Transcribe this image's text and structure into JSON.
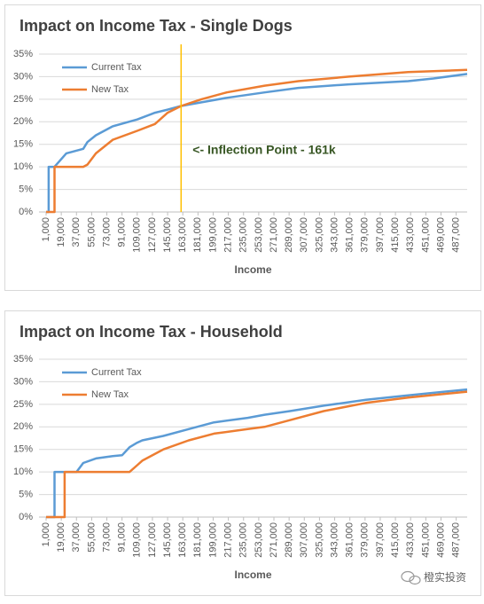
{
  "chart_data": [
    {
      "type": "line",
      "title": "Impact on Income Tax - Single Dogs",
      "xlabel": "Income",
      "x": [
        1000,
        4000,
        4000,
        11000,
        11000,
        25000,
        45000,
        50000,
        60000,
        80000,
        109000,
        130000,
        145000,
        161000,
        185000,
        215000,
        260000,
        300000,
        360000,
        430000,
        460000,
        500000
      ],
      "series": [
        {
          "name": "Current Tax",
          "color": "#5b9bd5",
          "values": [
            0,
            0,
            10,
            10,
            10,
            13,
            14,
            15.5,
            17,
            19,
            20.5,
            22,
            22.7,
            23.5,
            24.3,
            25.3,
            26.5,
            27.5,
            28.3,
            29,
            29.6,
            30.6
          ]
        },
        {
          "name": "New Tax",
          "color": "#ed7d31",
          "values": [
            0,
            0,
            0,
            0,
            10,
            10,
            10,
            10.5,
            13,
            16,
            18,
            19.5,
            22,
            23.5,
            25,
            26.5,
            28,
            29,
            30,
            31,
            31.2,
            31.5
          ]
        }
      ],
      "vline": {
        "x": 161000,
        "color": "#ffc000",
        "label": "<- Inflection Point - 161k"
      },
      "xlim": [
        1000,
        500000
      ],
      "ylim": [
        0,
        35
      ],
      "yticks": [
        {
          "value": 0,
          "label": "0%"
        },
        {
          "value": 5,
          "label": "5%"
        },
        {
          "value": 10,
          "label": "10%"
        },
        {
          "value": 15,
          "label": "15%"
        },
        {
          "value": 20,
          "label": "20%"
        },
        {
          "value": 25,
          "label": "25%"
        },
        {
          "value": 30,
          "label": "30%"
        },
        {
          "value": 35,
          "label": "35%"
        }
      ],
      "xticks": [
        {
          "value": 1000,
          "label": "1,000"
        },
        {
          "value": 19000,
          "label": "19,000"
        },
        {
          "value": 37000,
          "label": "37,000"
        },
        {
          "value": 55000,
          "label": "55,000"
        },
        {
          "value": 73000,
          "label": "73,000"
        },
        {
          "value": 91000,
          "label": "91,000"
        },
        {
          "value": 109000,
          "label": "109,000"
        },
        {
          "value": 127000,
          "label": "127,000"
        },
        {
          "value": 145000,
          "label": "145,000"
        },
        {
          "value": 163000,
          "label": "163,000"
        },
        {
          "value": 181000,
          "label": "181,000"
        },
        {
          "value": 199000,
          "label": "199,000"
        },
        {
          "value": 217000,
          "label": "217,000"
        },
        {
          "value": 235000,
          "label": "235,000"
        },
        {
          "value": 253000,
          "label": "253,000"
        },
        {
          "value": 271000,
          "label": "271,000"
        },
        {
          "value": 289000,
          "label": "289,000"
        },
        {
          "value": 307000,
          "label": "307,000"
        },
        {
          "value": 325000,
          "label": "325,000"
        },
        {
          "value": 343000,
          "label": "343,000"
        },
        {
          "value": 361000,
          "label": "361,000"
        },
        {
          "value": 379000,
          "label": "379,000"
        },
        {
          "value": 397000,
          "label": "397,000"
        },
        {
          "value": 415000,
          "label": "415,000"
        },
        {
          "value": 433000,
          "label": "433,000"
        },
        {
          "value": 451000,
          "label": "451,000"
        },
        {
          "value": 469000,
          "label": "469,000"
        },
        {
          "value": 487000,
          "label": "487,000"
        }
      ],
      "grid": true,
      "legend": "upper left"
    },
    {
      "type": "line",
      "title": "Impact on Income Tax - Household",
      "xlabel": "Income",
      "x": [
        1000,
        11000,
        11000,
        23000,
        23000,
        37000,
        45000,
        60000,
        80000,
        91000,
        100000,
        109000,
        115000,
        140000,
        170000,
        200000,
        240000,
        260000,
        290000,
        330000,
        380000,
        430000,
        500000
      ],
      "series": [
        {
          "name": "Current Tax",
          "color": "#5b9bd5",
          "values": [
            0,
            0,
            10,
            10,
            10,
            10,
            12,
            13,
            13.5,
            13.7,
            15.5,
            16.5,
            17,
            18,
            19.5,
            21,
            22,
            22.7,
            23.5,
            24.7,
            26,
            27,
            28.3
          ]
        },
        {
          "name": "New Tax",
          "color": "#ed7d31",
          "values": [
            0,
            0,
            0,
            0,
            10,
            10,
            10,
            10,
            10,
            10,
            10,
            11.5,
            12.5,
            15,
            17,
            18.5,
            19.5,
            20,
            21.5,
            23.5,
            25.3,
            26.5,
            27.8
          ]
        }
      ],
      "xlim": [
        1000,
        500000
      ],
      "ylim": [
        0,
        35
      ],
      "yticks": [
        {
          "value": 0,
          "label": "0%"
        },
        {
          "value": 5,
          "label": "5%"
        },
        {
          "value": 10,
          "label": "10%"
        },
        {
          "value": 15,
          "label": "15%"
        },
        {
          "value": 20,
          "label": "20%"
        },
        {
          "value": 25,
          "label": "25%"
        },
        {
          "value": 30,
          "label": "30%"
        },
        {
          "value": 35,
          "label": "35%"
        }
      ],
      "xticks": [
        {
          "value": 1000,
          "label": "1,000"
        },
        {
          "value": 19000,
          "label": "19,000"
        },
        {
          "value": 37000,
          "label": "37,000"
        },
        {
          "value": 55000,
          "label": "55,000"
        },
        {
          "value": 73000,
          "label": "73,000"
        },
        {
          "value": 91000,
          "label": "91,000"
        },
        {
          "value": 109000,
          "label": "109,000"
        },
        {
          "value": 127000,
          "label": "127,000"
        },
        {
          "value": 145000,
          "label": "145,000"
        },
        {
          "value": 163000,
          "label": "163,000"
        },
        {
          "value": 181000,
          "label": "181,000"
        },
        {
          "value": 199000,
          "label": "199,000"
        },
        {
          "value": 217000,
          "label": "217,000"
        },
        {
          "value": 235000,
          "label": "235,000"
        },
        {
          "value": 253000,
          "label": "253,000"
        },
        {
          "value": 271000,
          "label": "271,000"
        },
        {
          "value": 289000,
          "label": "289,000"
        },
        {
          "value": 307000,
          "label": "307,000"
        },
        {
          "value": 325000,
          "label": "325,000"
        },
        {
          "value": 343000,
          "label": "343,000"
        },
        {
          "value": 361000,
          "label": "361,000"
        },
        {
          "value": 379000,
          "label": "379,000"
        },
        {
          "value": 397000,
          "label": "397,000"
        },
        {
          "value": 415000,
          "label": "415,000"
        },
        {
          "value": 433000,
          "label": "433,000"
        },
        {
          "value": 451000,
          "label": "451,000"
        },
        {
          "value": 469000,
          "label": "469,000"
        },
        {
          "value": 487000,
          "label": "487,000"
        }
      ],
      "grid": true,
      "legend": "upper left"
    }
  ],
  "watermark": "橙实投资"
}
